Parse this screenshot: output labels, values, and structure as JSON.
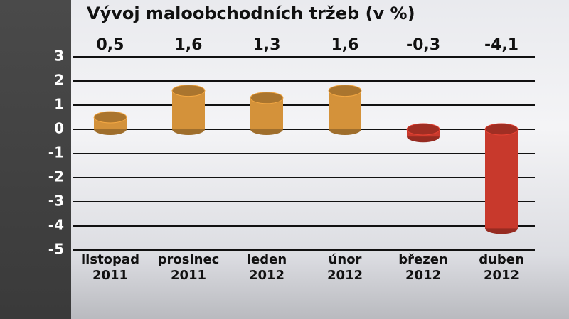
{
  "chart_data": {
    "type": "bar",
    "title": "Vývoj maloobchodních tržeb (v %)",
    "categories": [
      "listopad 2011",
      "prosinec 2011",
      "leden 2012",
      "únor 2012",
      "březen 2012",
      "duben 2012"
    ],
    "values": [
      0.5,
      1.6,
      1.3,
      1.6,
      -0.3,
      -4.1
    ],
    "value_labels": [
      "0,5",
      "1,6",
      "1,3",
      "1,6",
      "-0,3",
      "-4,1"
    ],
    "colors": [
      "#d4923a",
      "#d4923a",
      "#d4923a",
      "#d4923a",
      "#c8392c",
      "#c8392c"
    ],
    "ylim": [
      -5,
      3
    ],
    "yticks": [
      -5,
      -4,
      -3,
      -2,
      -1,
      0,
      1,
      2,
      3
    ],
    "grid": true
  }
}
